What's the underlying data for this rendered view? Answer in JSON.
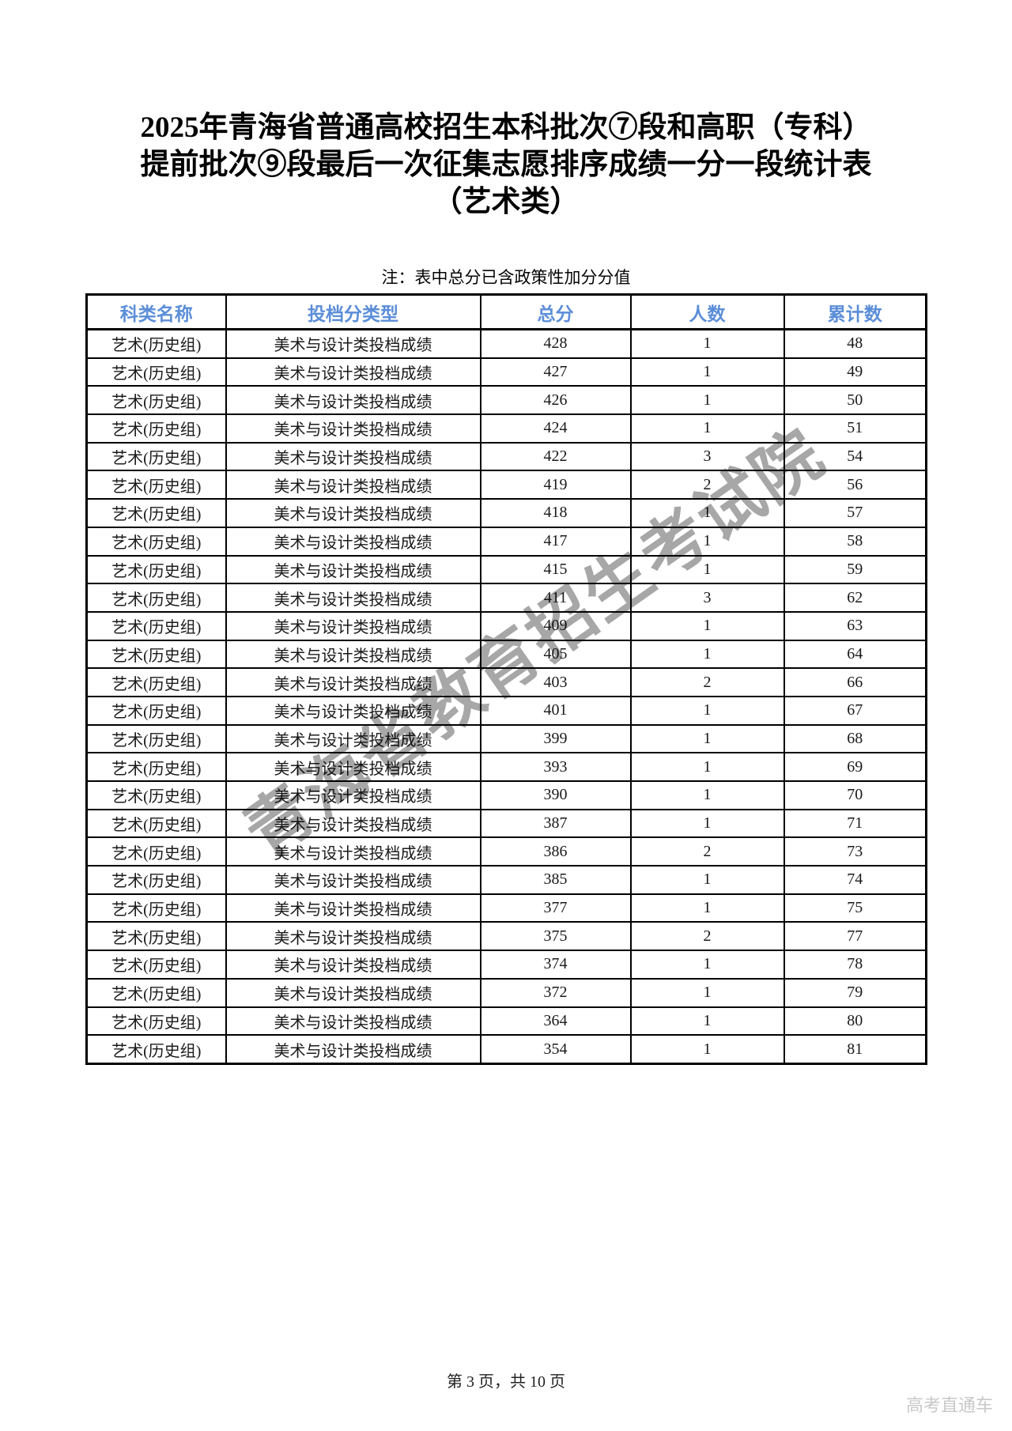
{
  "page": {
    "title_lines": [
      "2025年青海省普通高校招生本科批次⑦段和高职（专科）",
      "提前批次⑨段最后一次征集志愿排序成绩一分一段统计表",
      "（艺术类）"
    ],
    "note": "注：表中总分已含政策性加分分值",
    "watermark": "青海省教育招生考试院",
    "footer_page_info": "第 3 页，共 10 页",
    "brand": "高考直通车"
  },
  "table": {
    "headers": [
      "科类名称",
      "投档分类型",
      "总分",
      "人数",
      "累计数"
    ],
    "rows": [
      [
        "艺术(历史组)",
        "美术与设计类投档成绩",
        428,
        1,
        48
      ],
      [
        "艺术(历史组)",
        "美术与设计类投档成绩",
        427,
        1,
        49
      ],
      [
        "艺术(历史组)",
        "美术与设计类投档成绩",
        426,
        1,
        50
      ],
      [
        "艺术(历史组)",
        "美术与设计类投档成绩",
        424,
        1,
        51
      ],
      [
        "艺术(历史组)",
        "美术与设计类投档成绩",
        422,
        3,
        54
      ],
      [
        "艺术(历史组)",
        "美术与设计类投档成绩",
        419,
        2,
        56
      ],
      [
        "艺术(历史组)",
        "美术与设计类投档成绩",
        418,
        1,
        57
      ],
      [
        "艺术(历史组)",
        "美术与设计类投档成绩",
        417,
        1,
        58
      ],
      [
        "艺术(历史组)",
        "美术与设计类投档成绩",
        415,
        1,
        59
      ],
      [
        "艺术(历史组)",
        "美术与设计类投档成绩",
        411,
        3,
        62
      ],
      [
        "艺术(历史组)",
        "美术与设计类投档成绩",
        409,
        1,
        63
      ],
      [
        "艺术(历史组)",
        "美术与设计类投档成绩",
        405,
        1,
        64
      ],
      [
        "艺术(历史组)",
        "美术与设计类投档成绩",
        403,
        2,
        66
      ],
      [
        "艺术(历史组)",
        "美术与设计类投档成绩",
        401,
        1,
        67
      ],
      [
        "艺术(历史组)",
        "美术与设计类投档成绩",
        399,
        1,
        68
      ],
      [
        "艺术(历史组)",
        "美术与设计类投档成绩",
        393,
        1,
        69
      ],
      [
        "艺术(历史组)",
        "美术与设计类投档成绩",
        390,
        1,
        70
      ],
      [
        "艺术(历史组)",
        "美术与设计类投档成绩",
        387,
        1,
        71
      ],
      [
        "艺术(历史组)",
        "美术与设计类投档成绩",
        386,
        2,
        73
      ],
      [
        "艺术(历史组)",
        "美术与设计类投档成绩",
        385,
        1,
        74
      ],
      [
        "艺术(历史组)",
        "美术与设计类投档成绩",
        377,
        1,
        75
      ],
      [
        "艺术(历史组)",
        "美术与设计类投档成绩",
        375,
        2,
        77
      ],
      [
        "艺术(历史组)",
        "美术与设计类投档成绩",
        374,
        1,
        78
      ],
      [
        "艺术(历史组)",
        "美术与设计类投档成绩",
        372,
        1,
        79
      ],
      [
        "艺术(历史组)",
        "美术与设计类投档成绩",
        364,
        1,
        80
      ],
      [
        "艺术(历史组)",
        "美术与设计类投档成绩",
        354,
        1,
        81
      ]
    ]
  },
  "colors": {
    "header_text": "#5b8ed8",
    "border": "#000000",
    "body_text": "#1a1a1a",
    "watermark_gray": "#5f5f5f",
    "brand_gray": "#c8c8c8"
  }
}
